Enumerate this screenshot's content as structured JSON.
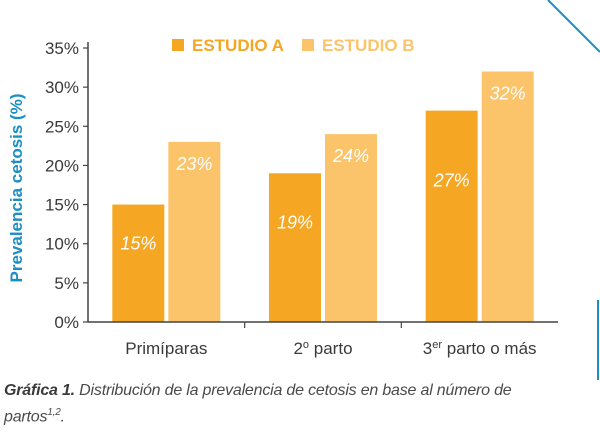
{
  "chart_data": {
    "type": "bar",
    "categories": [
      "Primíparas",
      "2º parto",
      "3er parto o más"
    ],
    "category_parts": [
      {
        "main": "Primíparas",
        "sup": "",
        "rest": ""
      },
      {
        "main": "2",
        "sup": "o",
        "rest": " parto"
      },
      {
        "main": "3",
        "sup": "er",
        "rest": " parto o más"
      }
    ],
    "series": [
      {
        "name": "ESTUDIO A",
        "values": [
          15,
          19,
          27
        ],
        "color": "#f5a623"
      },
      {
        "name": "ESTUDIO B",
        "values": [
          23,
          24,
          32
        ],
        "color": "#fbc46b"
      }
    ],
    "value_labels": [
      [
        "15%",
        "19%",
        "27%"
      ],
      [
        "23%",
        "24%",
        "32%"
      ]
    ],
    "ylabel": "Prevalencia cetosis (%)",
    "ylim": [
      0,
      35
    ],
    "yticks": [
      0,
      5,
      10,
      15,
      20,
      25,
      30,
      35
    ],
    "ytick_labels": [
      "0%",
      "5%",
      "10%",
      "15%",
      "20%",
      "25%",
      "30%",
      "35%"
    ],
    "grid": false,
    "legend_position": "top",
    "colors": {
      "axis": "#444444",
      "ylabel": "#1b8fc4",
      "value_label": "#ffffff",
      "frame_line": "#1b8fc4"
    }
  },
  "caption": {
    "label": "Gráfica 1.",
    "text": " Distribución de la prevalencia de cetosis en base al número de partos",
    "sup": "1,2",
    "end": "."
  }
}
